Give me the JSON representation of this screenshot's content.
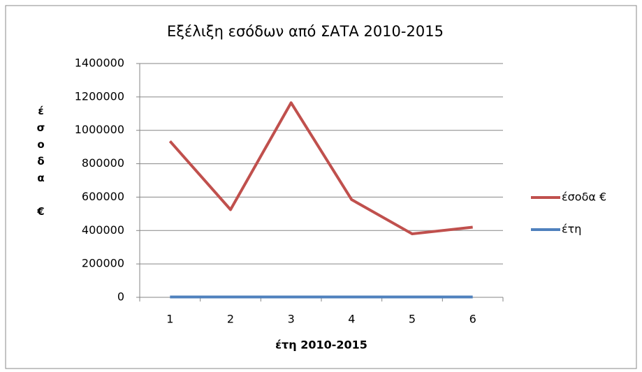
{
  "chart_data": {
    "type": "line",
    "title": "Εξέλιξη εσόδων από ΣΑΤΑ 2010-2015",
    "x_label": "έτη 2010-2015",
    "y_label": "έσοδα €",
    "categories": [
      "1",
      "2",
      "3",
      "4",
      "5",
      "6"
    ],
    "series": [
      {
        "name": "έσοδα €",
        "color": "#c0504d",
        "values": [
          935000,
          525000,
          1165000,
          585000,
          380000,
          420000
        ]
      },
      {
        "name": "έτη",
        "color": "#4f81bd",
        "values": [
          2010,
          2011,
          2012,
          2013,
          2014,
          2015
        ]
      }
    ],
    "ylim": [
      0,
      1400000
    ],
    "yticks": [
      0,
      200000,
      400000,
      600000,
      800000,
      1000000,
      1200000,
      1400000
    ],
    "grid": true,
    "legend": "right"
  }
}
